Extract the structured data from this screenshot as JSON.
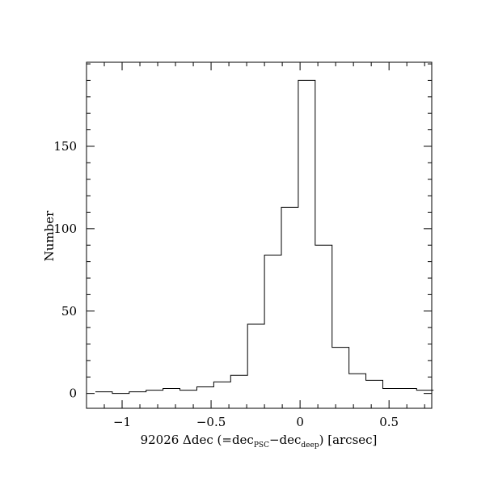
{
  "chart_data": {
    "type": "bar",
    "subtype": "step-histogram",
    "title": "",
    "xlabel": {
      "prefix": "92026 Δdec (=dec",
      "sub1": "PSC",
      "mid": "−dec",
      "sub2": "deep",
      "suffix": ") [arcsec]"
    },
    "ylabel": "Number",
    "xlim": [
      -1.2,
      0.74
    ],
    "ylim": [
      -9,
      201
    ],
    "bin_width": 0.095,
    "bin_edges": [
      -1.15,
      -1.055,
      -0.96,
      -0.865,
      -0.77,
      -0.675,
      -0.58,
      -0.485,
      -0.39,
      -0.295,
      -0.2,
      -0.105,
      -0.01,
      0.085,
      0.18,
      0.275,
      0.37,
      0.465,
      0.56,
      0.655
    ],
    "counts": [
      1,
      0,
      1,
      2,
      3,
      2,
      4,
      7,
      11,
      42,
      84,
      113,
      190,
      90,
      28,
      12,
      8,
      3,
      3,
      2
    ],
    "x_major_ticks": [
      -1,
      -0.5,
      0,
      0.5
    ],
    "x_tick_labels": [
      "−1",
      "−0.5",
      "0",
      "0.5"
    ],
    "x_minor_step": 0.1,
    "y_major_ticks": [
      0,
      50,
      100,
      150
    ],
    "y_tick_labels": [
      "0",
      "50",
      "100",
      "150"
    ],
    "y_minor_step": 10,
    "grid": false,
    "legend": "none"
  }
}
